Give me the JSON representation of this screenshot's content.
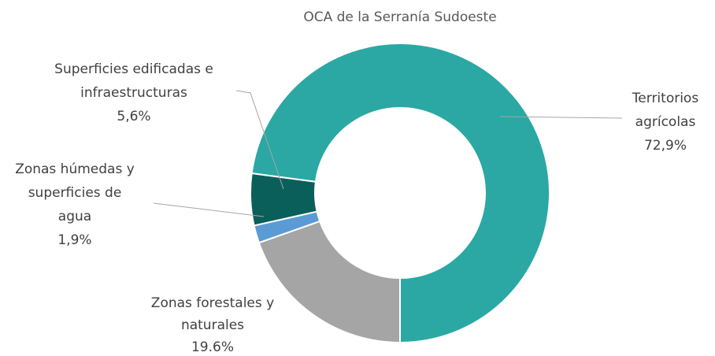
{
  "chart_data": {
    "type": "donut",
    "title": "OCA de la Serranía Sudoeste",
    "categories": [
      [
        "Zonas forestales y",
        "naturales"
      ],
      [
        "Zonas húmedas y",
        "superficies de",
        "agua"
      ],
      [
        "Superficies edificadas e",
        "infraestructuras"
      ],
      [
        "Territorios",
        "agrícolas"
      ]
    ],
    "values": [
      19.6,
      1.9,
      5.6,
      72.9
    ],
    "value_labels": [
      "19.6%",
      "1,9%",
      "5,6%",
      "72,9%"
    ],
    "colors": [
      "#a5a5a5",
      "#5b9bd5",
      "#0b5f5b",
      "#2ba8a3"
    ]
  }
}
